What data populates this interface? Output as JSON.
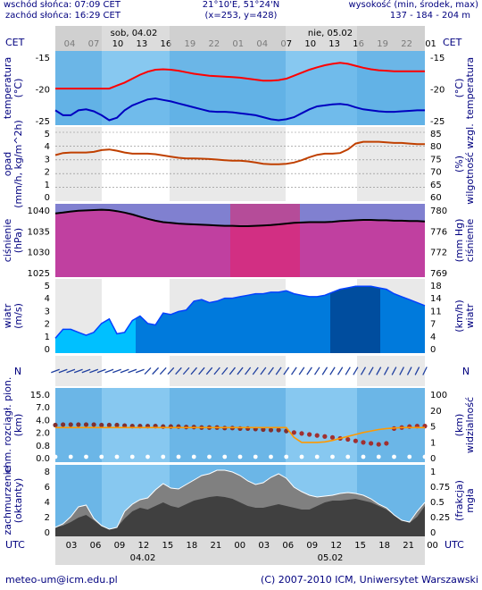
{
  "header": {
    "sunrise": "wschód słońca: 07:09 CET",
    "sunset": "zachód słońca: 16:29 CET",
    "coords": "21°10'E, 51°24'N",
    "grid": "(x=253, y=428)",
    "elev_label": "wysokość (min, środek, max)",
    "elev_values": "137 - 184 - 204 m"
  },
  "time_axis": {
    "top_day1": "sob, 04.02",
    "top_day2": "nie, 05.02",
    "cet_left": "CET",
    "cet_right": "CET",
    "cet_ticks": [
      "04",
      "07",
      "10",
      "13",
      "16",
      "19",
      "22",
      "01",
      "04",
      "07",
      "10",
      "13",
      "16",
      "19",
      "22",
      "01"
    ],
    "utc_left": "UTC",
    "utc_right": "UTC",
    "utc_ticks": [
      "03",
      "06",
      "09",
      "12",
      "15",
      "18",
      "21",
      "00",
      "03",
      "06",
      "09",
      "12",
      "15",
      "18",
      "21",
      "00"
    ],
    "bottom_day1": "04.02",
    "bottom_day2": "05.02"
  },
  "footer": {
    "email": "meteo-um@icm.edu.pl",
    "copyright": "(C) 2007-2010 ICM, Uniwersytet Warszawski"
  },
  "colors": {
    "sky": "#87c8f0",
    "night": "#4aa0dc",
    "gray_band": "#dcdcdc",
    "temp_line": "#ff0000",
    "dew_line": "#0000c0",
    "humidity_line": "#c04000",
    "pressure_line": "#000000",
    "pressure_fill": "#c040a0",
    "wind_fill": "#00c0ff",
    "wind_dark": "#0040c0",
    "arrow": "#2040a0"
  },
  "chart_data": [
    {
      "type": "line",
      "panel": "temperature",
      "ylabel_left": "temperatura",
      "unit_left": "(°C)",
      "ylabel_right": "temperatura",
      "unit_right": "(°C)",
      "ylim": [
        -28,
        -13
      ],
      "ticks_left": [
        "-15",
        "-20",
        "-25"
      ],
      "ticks_right": [
        "-15",
        "-20",
        "-25"
      ],
      "x": [
        0,
        1,
        2,
        3,
        4,
        5,
        6,
        7,
        8,
        9,
        10,
        11,
        12,
        13,
        14,
        15,
        16,
        17,
        18,
        19,
        20,
        21,
        22,
        23,
        24,
        25,
        26,
        27,
        28,
        29,
        30,
        31,
        32,
        33,
        34,
        35,
        36,
        37,
        38,
        39,
        40,
        41,
        42,
        43,
        44,
        45,
        46,
        47,
        48
      ],
      "series": [
        {
          "values": [
            -20.6,
            -20.6,
            -20.6,
            -20.6,
            -20.6,
            -20.6,
            -20.6,
            -20.6,
            -20.0,
            -19.4,
            -18.6,
            -17.8,
            -17.2,
            -16.8,
            -16.7,
            -16.8,
            -17.0,
            -17.3,
            -17.6,
            -17.8,
            -18.0,
            -18.1,
            -18.2,
            -18.3,
            -18.4,
            -18.6,
            -18.8,
            -19.0,
            -19.0,
            -18.9,
            -18.6,
            -18.0,
            -17.4,
            -16.8,
            -16.3,
            -15.9,
            -15.6,
            -15.4,
            -15.6,
            -16.0,
            -16.4,
            -16.7,
            -16.9,
            -17.0,
            -17.1,
            -17.1,
            -17.1,
            -17.1,
            -17.1
          ]
        },
        {
          "values": [
            -25.0,
            -26.0,
            -26.0,
            -25.0,
            -24.8,
            -25.2,
            -26.0,
            -27.0,
            -26.5,
            -25.0,
            -24.0,
            -23.4,
            -22.8,
            -22.6,
            -22.9,
            -23.2,
            -23.6,
            -24.0,
            -24.4,
            -24.8,
            -25.2,
            -25.3,
            -25.3,
            -25.4,
            -25.6,
            -25.8,
            -26.0,
            -26.4,
            -26.8,
            -27.0,
            -26.8,
            -26.4,
            -25.6,
            -24.8,
            -24.2,
            -24.0,
            -23.8,
            -23.7,
            -23.9,
            -24.4,
            -24.8,
            -25.0,
            -25.2,
            -25.3,
            -25.3,
            -25.2,
            -25.1,
            -25.0,
            -25.0
          ]
        }
      ]
    },
    {
      "type": "line",
      "panel": "precipitation_humidity",
      "ylabel_left": "opad",
      "unit_left": "(mm/h, kg/m^2h)",
      "ylabel_right": "wilgotność wzgl.",
      "unit_right": "(%)",
      "ylim": [
        0,
        5
      ],
      "ticks_left": [
        "5",
        "4",
        "3",
        "2",
        "1",
        "0"
      ],
      "ticks_right": [
        "85",
        "80",
        "75",
        "70",
        "65",
        "60"
      ],
      "humidity_range": [
        60,
        85
      ],
      "x": [
        0,
        1,
        2,
        3,
        4,
        5,
        6,
        7,
        8,
        9,
        10,
        11,
        12,
        13,
        14,
        15,
        16,
        17,
        18,
        19,
        20,
        21,
        22,
        23,
        24,
        25,
        26,
        27,
        28,
        29,
        30,
        31,
        32,
        33,
        34,
        35,
        36,
        37,
        38,
        39,
        40,
        41,
        42,
        43,
        44,
        45,
        46,
        47,
        48
      ],
      "series": [
        {
          "values": [
            75.5,
            76.2,
            76.4,
            76.4,
            76.4,
            76.6,
            77.2,
            77.4,
            77.0,
            76.4,
            76.0,
            76.0,
            76.0,
            75.8,
            75.4,
            75.0,
            74.6,
            74.4,
            74.4,
            74.3,
            74.2,
            74.0,
            73.8,
            73.6,
            73.6,
            73.4,
            73.0,
            72.6,
            72.4,
            72.4,
            72.6,
            73.0,
            73.8,
            74.8,
            75.6,
            76.0,
            76.0,
            76.2,
            77.4,
            79.4,
            80.0,
            80.0,
            80.0,
            79.8,
            79.6,
            79.6,
            79.4,
            79.2,
            79.2
          ]
        },
        {
          "values": [
            0,
            0,
            0,
            0,
            0,
            0,
            0,
            0,
            0,
            0,
            0,
            0,
            0,
            0,
            0,
            0,
            0,
            0,
            0,
            0,
            0,
            0,
            0,
            0,
            0,
            0,
            0,
            0,
            0,
            0,
            0,
            0,
            0,
            0,
            0,
            0,
            0,
            0,
            0,
            0,
            0,
            0,
            0,
            0,
            0,
            0,
            0,
            0,
            0
          ]
        }
      ]
    },
    {
      "type": "area",
      "panel": "pressure",
      "ylabel_left": "ciśnienie",
      "unit_left": "(hPa)",
      "ylabel_right": "ciśnienie",
      "unit_right": "(mm Hg)",
      "ylim": [
        1022,
        1042
      ],
      "ticks_left": [
        "1040",
        "1035",
        "1030",
        "1025"
      ],
      "ticks_right": [
        "780",
        "776",
        "772",
        "769"
      ],
      "x": [
        0,
        1,
        2,
        3,
        4,
        5,
        6,
        7,
        8,
        9,
        10,
        11,
        12,
        13,
        14,
        15,
        16,
        17,
        18,
        19,
        20,
        21,
        22,
        23,
        24,
        25,
        26,
        27,
        28,
        29,
        30,
        31,
        32,
        33,
        34,
        35,
        36,
        37,
        38,
        39,
        40,
        41,
        42,
        43,
        44,
        45,
        46,
        47,
        48
      ],
      "series": [
        {
          "values": [
            1039.4,
            1039.6,
            1039.9,
            1040.1,
            1040.2,
            1040.3,
            1040.4,
            1040.3,
            1040.0,
            1039.6,
            1039.1,
            1038.5,
            1037.9,
            1037.4,
            1037.0,
            1036.8,
            1036.6,
            1036.5,
            1036.4,
            1036.3,
            1036.2,
            1036.1,
            1036.0,
            1036.0,
            1035.9,
            1035.9,
            1036.0,
            1036.1,
            1036.2,
            1036.4,
            1036.6,
            1036.8,
            1036.9,
            1037.0,
            1037.0,
            1037.0,
            1037.1,
            1037.3,
            1037.4,
            1037.5,
            1037.6,
            1037.6,
            1037.5,
            1037.5,
            1037.4,
            1037.4,
            1037.3,
            1037.3,
            1037.2
          ]
        }
      ]
    },
    {
      "type": "area",
      "panel": "wind",
      "ylabel_left": "wiatr",
      "unit_left": "(m/s)",
      "ylabel_right": "wiatr",
      "unit_right": "(km/h)",
      "ylim": [
        0,
        5
      ],
      "ticks_left": [
        "5",
        "4",
        "3",
        "2",
        "1",
        "0"
      ],
      "ticks_right": [
        "18",
        "14",
        "11",
        "7",
        "4",
        "0"
      ],
      "x": [
        0,
        1,
        2,
        3,
        4,
        5,
        6,
        7,
        8,
        9,
        10,
        11,
        12,
        13,
        14,
        15,
        16,
        17,
        18,
        19,
        20,
        21,
        22,
        23,
        24,
        25,
        26,
        27,
        28,
        29,
        30,
        31,
        32,
        33,
        34,
        35,
        36,
        37,
        38,
        39,
        40,
        41,
        42,
        43,
        44,
        45,
        46,
        47,
        48
      ],
      "series": [
        {
          "values": [
            1.0,
            1.6,
            1.6,
            1.4,
            1.2,
            1.4,
            2.0,
            2.3,
            1.3,
            1.4,
            2.2,
            2.5,
            2.0,
            1.9,
            2.7,
            2.6,
            2.8,
            2.9,
            3.5,
            3.6,
            3.4,
            3.5,
            3.7,
            3.7,
            3.8,
            3.9,
            4.0,
            4.0,
            4.1,
            4.1,
            4.2,
            4.0,
            3.9,
            3.8,
            3.8,
            3.9,
            4.1,
            4.3,
            4.4,
            4.5,
            4.5,
            4.5,
            4.4,
            4.3,
            4.0,
            3.8,
            3.6,
            3.4,
            3.2
          ]
        }
      ]
    },
    {
      "type": "scatter",
      "panel": "visibility",
      "ylabel_left": "chm. rozciągł. pion.",
      "unit_left": "(km)",
      "ylabel_right": "widzialność",
      "unit_right": "(km)",
      "ylim": [
        0,
        15
      ],
      "ticks_left": [
        "15.0",
        "7.0",
        "4.0",
        "2.0",
        "0.8",
        "0.0"
      ],
      "ticks_right": [
        "100",
        "20",
        "5",
        "1",
        "0"
      ],
      "x": [
        0,
        1,
        2,
        3,
        4,
        5,
        6,
        7,
        8,
        9,
        10,
        11,
        12,
        13,
        14,
        15,
        16,
        17,
        18,
        19,
        20,
        21,
        22,
        23,
        24,
        25,
        26,
        27,
        28,
        29,
        30,
        31,
        32,
        33,
        34,
        35,
        36,
        37,
        38,
        39,
        40,
        41,
        42,
        43,
        44,
        45,
        46,
        47,
        48
      ],
      "series": [
        {
          "values": [
            7.5,
            7.6,
            7.6,
            7.6,
            7.6,
            7.6,
            7.5,
            7.5,
            7.5,
            7.4,
            7.3,
            7.3,
            7.3,
            7.3,
            7.2,
            7.2,
            7.2,
            7.1,
            7.1,
            7.0,
            7.0,
            7.0,
            6.9,
            6.9,
            6.8,
            6.8,
            6.7,
            6.6,
            6.5,
            6.5,
            6.3,
            6.0,
            5.8,
            5.6,
            5.4,
            5.2,
            5.0,
            4.8,
            4.6,
            4.3,
            4.0,
            3.8,
            3.6,
            3.8,
            6.8,
            7.0,
            7.2,
            7.3,
            7.3
          ]
        },
        {
          "values": [
            7.0,
            7.0,
            7.0,
            7.0,
            7.0,
            7.0,
            7.0,
            7.0,
            7.0,
            7.0,
            7.0,
            7.0,
            7.0,
            7.0,
            7.0,
            7.0,
            7.0,
            7.0,
            7.0,
            7.0,
            7.0,
            7.0,
            7.0,
            7.0,
            7.0,
            7.0,
            7.0,
            7.0,
            7.0,
            7.0,
            7.0,
            5.0,
            4.0,
            4.0,
            4.0,
            4.1,
            4.4,
            4.8,
            5.2,
            5.6,
            6.0,
            6.3,
            6.6,
            6.8,
            6.9,
            7.0,
            7.0,
            7.0,
            7.0
          ]
        }
      ]
    },
    {
      "type": "area",
      "panel": "clouds",
      "ylabel_left": "zachmurzenie",
      "unit_left": "(oktanty)",
      "ylabel_right": "mgła",
      "unit_right": "(frakcja)",
      "ylim": [
        0,
        8
      ],
      "ticks_left": [
        "8",
        "6",
        "4",
        "2",
        "0"
      ],
      "ticks_right": [
        "1",
        "0.75",
        "0.5",
        "0.25",
        "0"
      ],
      "x": [
        0,
        1,
        2,
        3,
        4,
        5,
        6,
        7,
        8,
        9,
        10,
        11,
        12,
        13,
        14,
        15,
        16,
        17,
        18,
        19,
        20,
        21,
        22,
        23,
        24,
        25,
        26,
        27,
        28,
        29,
        30,
        31,
        32,
        33,
        34,
        35,
        36,
        37,
        38,
        39,
        40,
        41,
        42,
        43,
        44,
        45,
        46,
        47,
        48
      ],
      "series": [
        {
          "values": [
            1.0,
            1.4,
            2.2,
            3.3,
            3.5,
            2.0,
            1.2,
            0.8,
            1.0,
            2.8,
            3.6,
            4.1,
            4.3,
            5.2,
            5.9,
            5.4,
            5.3,
            5.8,
            6.3,
            6.8,
            7.0,
            7.4,
            7.4,
            7.2,
            6.8,
            6.2,
            5.8,
            6.0,
            6.6,
            7.0,
            6.5,
            5.5,
            5.0,
            4.6,
            4.4,
            4.5,
            4.6,
            4.8,
            4.9,
            4.8,
            4.6,
            4.2,
            3.6,
            3.2,
            2.4,
            1.8,
            1.6,
            2.8,
            3.8
          ]
        },
        {
          "values": [
            1.0,
            1.2,
            1.6,
            2.1,
            2.4,
            1.8,
            1.1,
            0.8,
            1.0,
            2.0,
            2.8,
            3.2,
            3.0,
            3.4,
            3.8,
            3.4,
            3.2,
            3.6,
            4.0,
            4.2,
            4.4,
            4.5,
            4.4,
            4.2,
            3.8,
            3.4,
            3.2,
            3.2,
            3.4,
            3.6,
            3.4,
            3.2,
            3.0,
            3.0,
            3.4,
            3.8,
            4.0,
            4.0,
            4.1,
            4.2,
            4.0,
            3.8,
            3.4,
            3.0,
            2.4,
            1.8,
            1.5,
            2.2,
            3.4
          ]
        }
      ]
    }
  ]
}
